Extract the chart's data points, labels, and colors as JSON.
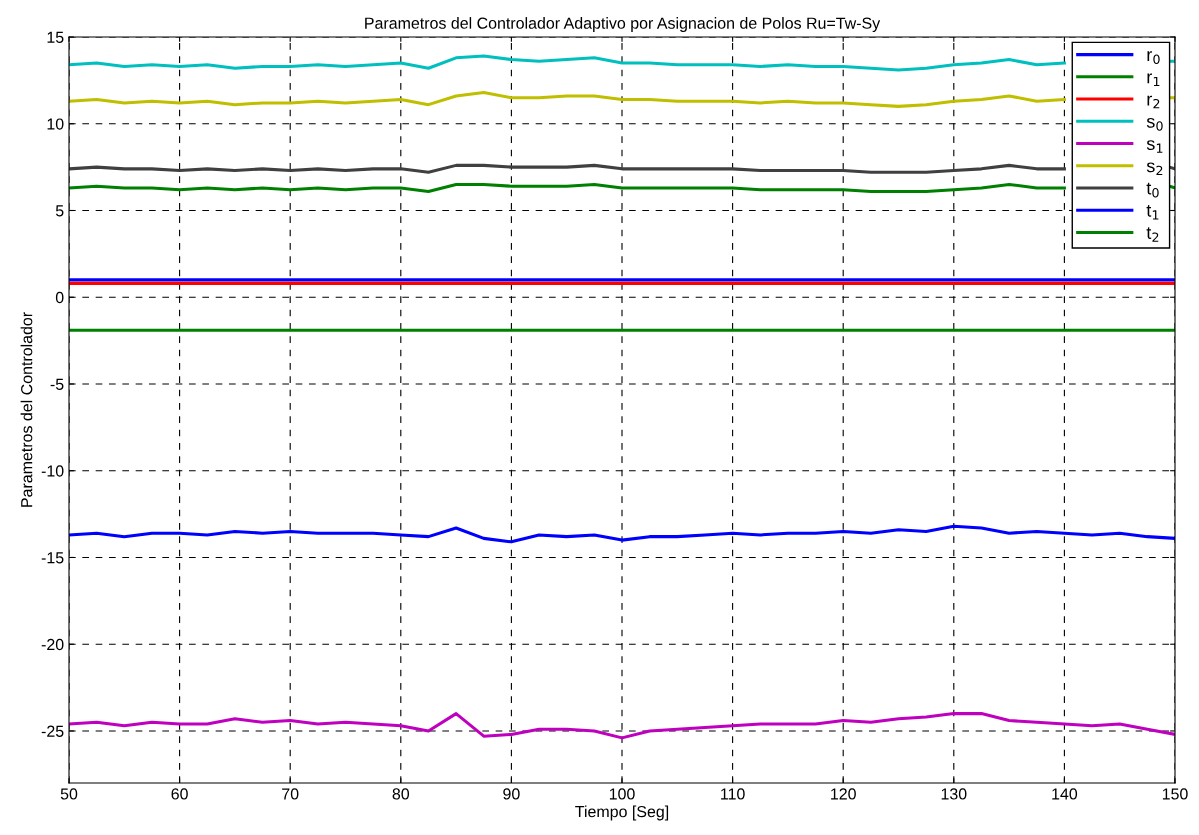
{
  "chart_data": {
    "type": "line",
    "title": "Parametros del Controlador Adaptivo por Asignacion de Polos Ru=Tw-Sy",
    "xlabel": "Tiempo [Seg]",
    "ylabel": "Parametros del Controlador",
    "x": [
      50,
      52.5,
      55,
      57.5,
      60,
      62.5,
      65,
      67.5,
      70,
      72.5,
      75,
      77.5,
      80,
      82.5,
      85,
      87.5,
      90,
      92.5,
      95,
      97.5,
      100,
      102.5,
      105,
      107.5,
      110,
      112.5,
      115,
      117.5,
      120,
      122.5,
      125,
      127.5,
      130,
      132.5,
      135,
      137.5,
      140,
      142.5,
      145,
      147.5,
      150
    ],
    "xlim": [
      50,
      150
    ],
    "xticks": [
      50,
      60,
      70,
      80,
      90,
      100,
      110,
      120,
      130,
      140,
      150
    ],
    "ylim": [
      -28,
      15
    ],
    "yticks": [
      -25,
      -20,
      -15,
      -10,
      -5,
      0,
      5,
      10,
      15
    ],
    "grid": true,
    "legend": "top right",
    "line_style": "solid",
    "marker": "none",
    "series": [
      {
        "name": "r$_{0}$",
        "color": "#0000ff",
        "values": [
          1.0,
          1.0,
          1.0,
          1.0,
          1.0,
          1.0,
          1.0,
          1.0,
          1.0,
          1.0,
          1.0,
          1.0,
          1.0,
          1.0,
          1.0,
          1.0,
          1.0,
          1.0,
          1.0,
          1.0,
          1.0,
          1.0,
          1.0,
          1.0,
          1.0,
          1.0,
          1.0,
          1.0,
          1.0,
          1.0,
          1.0,
          1.0,
          1.0,
          1.0,
          1.0,
          1.0,
          1.0,
          1.0,
          1.0,
          1.0,
          1.0
        ]
      },
      {
        "name": "r$_{1}$",
        "color": "#008000",
        "values": [
          -1.9,
          -1.9,
          -1.9,
          -1.9,
          -1.9,
          -1.9,
          -1.9,
          -1.9,
          -1.9,
          -1.9,
          -1.9,
          -1.9,
          -1.9,
          -1.9,
          -1.9,
          -1.9,
          -1.9,
          -1.9,
          -1.9,
          -1.9,
          -1.9,
          -1.9,
          -1.9,
          -1.9,
          -1.9,
          -1.9,
          -1.9,
          -1.9,
          -1.9,
          -1.9,
          -1.9,
          -1.9,
          -1.9,
          -1.9,
          -1.9,
          -1.9,
          -1.9,
          -1.9,
          -1.9,
          -1.9,
          -1.9
        ]
      },
      {
        "name": "r$_{2}$",
        "color": "#ff0000",
        "values": [
          0.8,
          0.8,
          0.8,
          0.8,
          0.8,
          0.8,
          0.8,
          0.8,
          0.8,
          0.8,
          0.8,
          0.8,
          0.8,
          0.8,
          0.8,
          0.8,
          0.8,
          0.8,
          0.8,
          0.8,
          0.8,
          0.8,
          0.8,
          0.8,
          0.8,
          0.8,
          0.8,
          0.8,
          0.8,
          0.8,
          0.8,
          0.8,
          0.8,
          0.8,
          0.8,
          0.8,
          0.8,
          0.8,
          0.8,
          0.8,
          0.8
        ]
      },
      {
        "name": "s$_{0}$",
        "color": "#00bfbf",
        "x": [
          50,
          52.5,
          55,
          57.5,
          60,
          62.5,
          65,
          67.5,
          70,
          72.5,
          75,
          77.5,
          80,
          82.5,
          85,
          87.5,
          90,
          92.5,
          95,
          97.5,
          100,
          102.5,
          105,
          107.5,
          110,
          112.5,
          115,
          117.5,
          120,
          122.5,
          125,
          127.5,
          130,
          132.5,
          135,
          137.5,
          140,
          142.5,
          145,
          149.5,
          150
        ],
        "values": [
          13.4,
          13.5,
          13.3,
          13.4,
          13.3,
          13.4,
          13.2,
          13.3,
          13.3,
          13.4,
          13.3,
          13.4,
          13.5,
          13.2,
          13.8,
          13.9,
          13.7,
          13.6,
          13.7,
          13.8,
          13.5,
          13.5,
          13.4,
          13.4,
          13.4,
          13.3,
          13.4,
          13.3,
          13.3,
          13.2,
          13.1,
          13.2,
          13.4,
          13.5,
          13.7,
          13.4,
          13.5,
          null,
          null,
          13.6,
          13.6
        ]
      },
      {
        "name": "s$_{1}$",
        "color": "#bf00bf",
        "values": [
          -24.6,
          -24.5,
          -24.7,
          -24.5,
          -24.6,
          -24.6,
          -24.3,
          -24.5,
          -24.4,
          -24.6,
          -24.5,
          -24.6,
          -24.7,
          -25.0,
          -24.0,
          -25.3,
          -25.2,
          -24.9,
          -24.9,
          -25.0,
          -25.4,
          -25.0,
          -24.9,
          -24.8,
          -24.7,
          -24.6,
          -24.6,
          -24.6,
          -24.4,
          -24.5,
          -24.3,
          -24.2,
          -24.0,
          -24.0,
          -24.4,
          -24.5,
          -24.6,
          -24.7,
          -24.6,
          -24.9,
          -25.2
        ]
      },
      {
        "name": "s$_{2}$",
        "color": "#bfbf00",
        "x": [
          50,
          52.5,
          55,
          57.5,
          60,
          62.5,
          65,
          67.5,
          70,
          72.5,
          75,
          77.5,
          80,
          82.5,
          85,
          87.5,
          90,
          92.5,
          95,
          97.5,
          100,
          102.5,
          105,
          107.5,
          110,
          112.5,
          115,
          117.5,
          120,
          122.5,
          125,
          127.5,
          130,
          132.5,
          135,
          137.5,
          140,
          142.5,
          145,
          149.5,
          150
        ],
        "values": [
          11.3,
          11.4,
          11.2,
          11.3,
          11.2,
          11.3,
          11.1,
          11.2,
          11.2,
          11.3,
          11.2,
          11.3,
          11.4,
          11.1,
          11.6,
          11.8,
          11.5,
          11.5,
          11.6,
          11.6,
          11.4,
          11.4,
          11.3,
          11.3,
          11.3,
          11.2,
          11.3,
          11.2,
          11.2,
          11.1,
          11.0,
          11.1,
          11.3,
          11.4,
          11.6,
          11.3,
          11.4,
          null,
          null,
          11.5,
          11.5
        ]
      },
      {
        "name": "t$_{0}$",
        "color": "#404040",
        "x": [
          50,
          52.5,
          55,
          57.5,
          60,
          62.5,
          65,
          67.5,
          70,
          72.5,
          75,
          77.5,
          80,
          82.5,
          85,
          87.5,
          90,
          92.5,
          95,
          97.5,
          100,
          102.5,
          105,
          107.5,
          110,
          112.5,
          115,
          117.5,
          120,
          122.5,
          125,
          127.5,
          130,
          132.5,
          135,
          137.5,
          140,
          142.5,
          145,
          149.5,
          150
        ],
        "values": [
          7.4,
          7.5,
          7.4,
          7.4,
          7.3,
          7.4,
          7.3,
          7.4,
          7.3,
          7.4,
          7.3,
          7.4,
          7.4,
          7.2,
          7.6,
          7.6,
          7.5,
          7.5,
          7.5,
          7.6,
          7.4,
          7.4,
          7.4,
          7.4,
          7.4,
          7.3,
          7.3,
          7.3,
          7.3,
          7.2,
          7.2,
          7.2,
          7.3,
          7.4,
          7.6,
          7.4,
          7.4,
          null,
          null,
          7.5,
          7.4
        ]
      },
      {
        "name": "t$_{1}$",
        "color": "#0000ff",
        "values": [
          -13.7,
          -13.6,
          -13.8,
          -13.6,
          -13.6,
          -13.7,
          -13.5,
          -13.6,
          -13.5,
          -13.6,
          -13.6,
          -13.6,
          -13.7,
          -13.8,
          -13.3,
          -13.9,
          -14.1,
          -13.7,
          -13.8,
          -13.7,
          -14.0,
          -13.8,
          -13.8,
          -13.7,
          -13.6,
          -13.7,
          -13.6,
          -13.6,
          -13.5,
          -13.6,
          -13.4,
          -13.5,
          -13.2,
          -13.3,
          -13.6,
          -13.5,
          -13.6,
          -13.7,
          -13.6,
          -13.8,
          -13.9
        ]
      },
      {
        "name": "t$_{2}$",
        "color": "#008000",
        "x": [
          50,
          52.5,
          55,
          57.5,
          60,
          62.5,
          65,
          67.5,
          70,
          72.5,
          75,
          77.5,
          80,
          82.5,
          85,
          87.5,
          90,
          92.5,
          95,
          97.5,
          100,
          102.5,
          105,
          107.5,
          110,
          112.5,
          115,
          117.5,
          120,
          122.5,
          125,
          127.5,
          130,
          132.5,
          135,
          137.5,
          140,
          142.5,
          145,
          149.5,
          150
        ],
        "values": [
          6.3,
          6.4,
          6.3,
          6.3,
          6.2,
          6.3,
          6.2,
          6.3,
          6.2,
          6.3,
          6.2,
          6.3,
          6.3,
          6.1,
          6.5,
          6.5,
          6.4,
          6.4,
          6.4,
          6.5,
          6.3,
          6.3,
          6.3,
          6.3,
          6.3,
          6.2,
          6.2,
          6.2,
          6.2,
          6.1,
          6.1,
          6.1,
          6.2,
          6.3,
          6.5,
          6.3,
          6.3,
          null,
          null,
          6.4,
          6.3
        ]
      }
    ]
  }
}
